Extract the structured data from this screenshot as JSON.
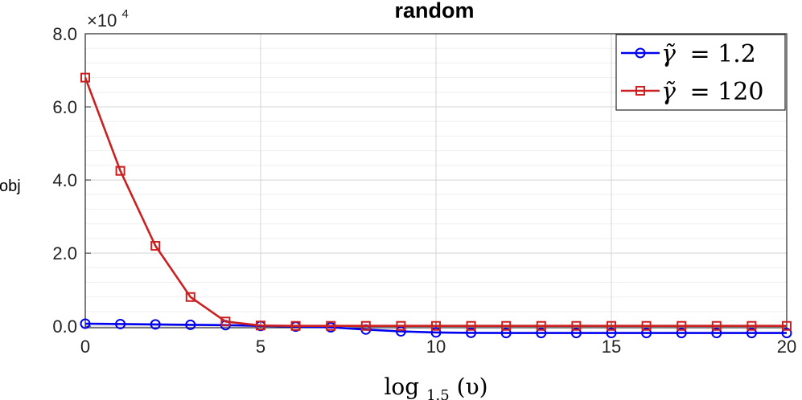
{
  "chart_data": {
    "type": "line",
    "title": "random",
    "xlabel": "log",
    "xlabel_sub": "1.5",
    "xlabel_arg": "(υ)",
    "ylabel": "obj",
    "exponent_base": "×10",
    "exponent_power": "4",
    "xlim": [
      0,
      20
    ],
    "ylim": [
      -400,
      80000
    ],
    "x_ticks": [
      "0",
      "5",
      "10",
      "15",
      "20"
    ],
    "y_ticks": [
      "0.0",
      "2.0",
      "4.0",
      "6.0",
      "8.0"
    ],
    "grid": true,
    "legend_position": "top-right",
    "x": [
      0,
      1,
      2,
      3,
      4,
      5,
      6,
      7,
      8,
      9,
      10,
      11,
      12,
      13,
      14,
      15,
      16,
      17,
      18,
      19,
      20
    ],
    "series": [
      {
        "label_symbol": "γ̃",
        "label_eq": "= 1.2",
        "color": "#0000ee",
        "marker": "circle",
        "values": [
          700,
          600,
          500,
          400,
          300,
          100,
          -100,
          -300,
          -900,
          -1400,
          -1700,
          -1800,
          -1850,
          -1850,
          -1850,
          -1850,
          -1850,
          -1850,
          -1850,
          -1850,
          -1850
        ]
      },
      {
        "label_symbol": "γ̃",
        "label_eq": "= 120",
        "color": "#cc1f1f",
        "marker": "square",
        "values": [
          68000,
          42500,
          22000,
          8000,
          1300,
          200,
          100,
          100,
          100,
          100,
          100,
          100,
          100,
          100,
          100,
          100,
          100,
          100,
          100,
          100,
          100
        ]
      }
    ]
  }
}
